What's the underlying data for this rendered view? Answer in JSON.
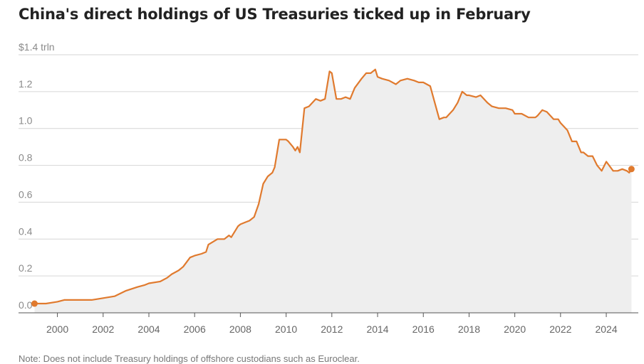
{
  "chart_data": {
    "type": "area",
    "title": "China's direct holdings of US Treasuries ticked up in February",
    "ylabel_unit": "$1.4 trln",
    "ylim": [
      0,
      1.4
    ],
    "xlim": [
      1998.3,
      2025.4
    ],
    "y_ticks": [
      {
        "value": 0.0,
        "label": "0.0"
      },
      {
        "value": 0.2,
        "label": "0.2"
      },
      {
        "value": 0.4,
        "label": "0.4"
      },
      {
        "value": 0.6,
        "label": "0.6"
      },
      {
        "value": 0.8,
        "label": "0.8"
      },
      {
        "value": 1.0,
        "label": "1.0"
      },
      {
        "value": 1.2,
        "label": "1.2"
      },
      {
        "value": 1.4,
        "label": "$1.4 trln"
      }
    ],
    "x_ticks": [
      {
        "value": 2000,
        "label": "2000"
      },
      {
        "value": 2002,
        "label": "2002"
      },
      {
        "value": 2004,
        "label": "2004"
      },
      {
        "value": 2006,
        "label": "2006"
      },
      {
        "value": 2008,
        "label": "2008"
      },
      {
        "value": 2010,
        "label": "2010"
      },
      {
        "value": 2012,
        "label": "2012"
      },
      {
        "value": 2014,
        "label": "2014"
      },
      {
        "value": 2016,
        "label": "2016"
      },
      {
        "value": 2018,
        "label": "2018"
      },
      {
        "value": 2020,
        "label": "2020"
      },
      {
        "value": 2022,
        "label": "2022"
      },
      {
        "value": 2024,
        "label": "2024"
      }
    ],
    "grid": true,
    "series": [
      {
        "name": "China's direct holdings of US Treasuries ($ trln)",
        "color": "#e07a2e",
        "fill": "#eeeeee",
        "x": [
          1999.0,
          1999.5,
          2000.0,
          2000.3,
          2000.7,
          2001.0,
          2001.5,
          2002.0,
          2002.5,
          2003.0,
          2003.5,
          2003.8,
          2004.0,
          2004.5,
          2004.8,
          2005.0,
          2005.3,
          2005.5,
          2005.8,
          2006.0,
          2006.3,
          2006.5,
          2006.6,
          2007.0,
          2007.3,
          2007.5,
          2007.6,
          2007.8,
          2007.9,
          2008.0,
          2008.2,
          2008.4,
          2008.6,
          2008.8,
          2009.0,
          2009.2,
          2009.4,
          2009.5,
          2009.7,
          2009.8,
          2010.0,
          2010.1,
          2010.3,
          2010.4,
          2010.5,
          2010.6,
          2010.8,
          2011.0,
          2011.3,
          2011.5,
          2011.7,
          2011.9,
          2012.0,
          2012.2,
          2012.4,
          2012.6,
          2012.8,
          2013.0,
          2013.3,
          2013.5,
          2013.7,
          2013.9,
          2014.0,
          2014.2,
          2014.5,
          2014.8,
          2015.0,
          2015.3,
          2015.6,
          2015.8,
          2016.0,
          2016.3,
          2016.5,
          2016.7,
          2016.9,
          2017.0,
          2017.3,
          2017.5,
          2017.7,
          2017.9,
          2018.0,
          2018.3,
          2018.5,
          2018.8,
          2019.0,
          2019.3,
          2019.6,
          2019.9,
          2020.0,
          2020.3,
          2020.6,
          2020.9,
          2021.0,
          2021.2,
          2021.4,
          2021.7,
          2021.9,
          2022.0,
          2022.3,
          2022.5,
          2022.7,
          2022.9,
          2023.0,
          2023.2,
          2023.4,
          2023.6,
          2023.8,
          2024.0,
          2024.3,
          2024.5,
          2024.7,
          2024.9,
          2025.0,
          2025.1
        ],
        "y": [
          0.05,
          0.05,
          0.06,
          0.07,
          0.07,
          0.07,
          0.07,
          0.08,
          0.09,
          0.12,
          0.14,
          0.15,
          0.16,
          0.17,
          0.19,
          0.21,
          0.23,
          0.25,
          0.3,
          0.31,
          0.32,
          0.33,
          0.37,
          0.4,
          0.4,
          0.42,
          0.41,
          0.45,
          0.47,
          0.48,
          0.49,
          0.5,
          0.52,
          0.59,
          0.7,
          0.74,
          0.76,
          0.79,
          0.94,
          0.94,
          0.94,
          0.93,
          0.9,
          0.88,
          0.9,
          0.87,
          1.11,
          1.12,
          1.16,
          1.15,
          1.16,
          1.31,
          1.3,
          1.16,
          1.16,
          1.17,
          1.16,
          1.22,
          1.27,
          1.3,
          1.3,
          1.32,
          1.28,
          1.27,
          1.26,
          1.24,
          1.26,
          1.27,
          1.26,
          1.25,
          1.25,
          1.23,
          1.14,
          1.05,
          1.06,
          1.06,
          1.1,
          1.14,
          1.2,
          1.18,
          1.18,
          1.17,
          1.18,
          1.14,
          1.12,
          1.11,
          1.11,
          1.1,
          1.08,
          1.08,
          1.06,
          1.06,
          1.07,
          1.1,
          1.09,
          1.05,
          1.05,
          1.03,
          0.99,
          0.93,
          0.93,
          0.87,
          0.87,
          0.85,
          0.85,
          0.8,
          0.77,
          0.82,
          0.77,
          0.77,
          0.78,
          0.77,
          0.76,
          0.78
        ]
      }
    ],
    "endpoint_markers": "first and last points marked with dots",
    "note": "Note: Does not include Treasury holdings of offshore custodians such as Euroclear."
  }
}
